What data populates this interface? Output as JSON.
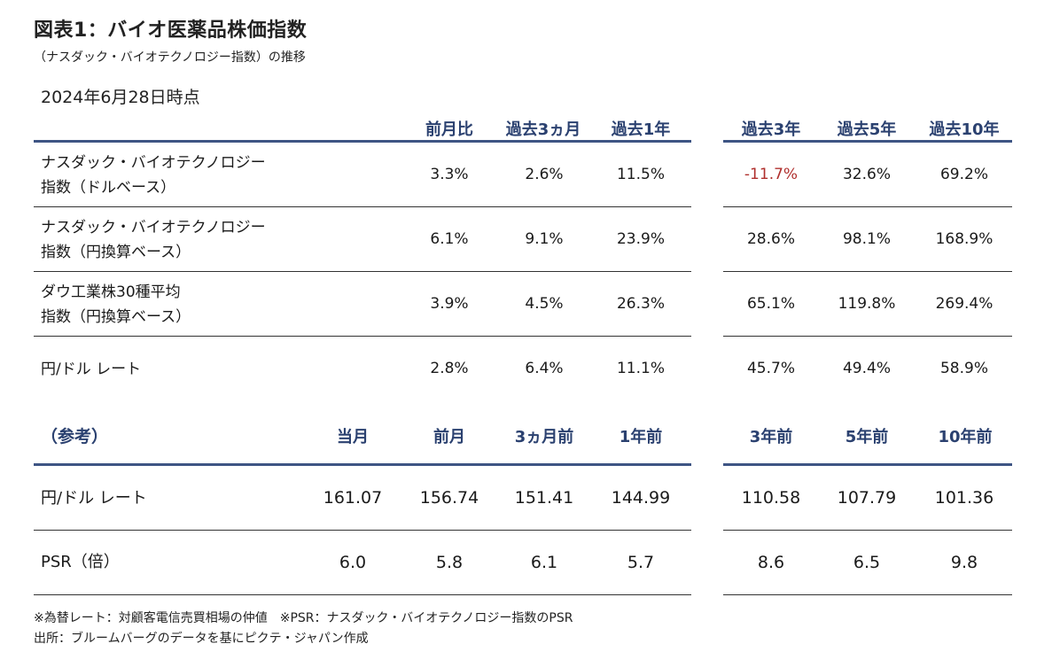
{
  "title": "図表1：バイオ医薬品株価指数",
  "subtitle": "（ナスダック・バイオテクノロジー指数）の推移",
  "as_of": "2024年6月28日時点",
  "performance": {
    "headers": [
      "前月比",
      "過去3ヵ月",
      "過去1年",
      "過去3年",
      "過去5年",
      "過去10年"
    ],
    "rows": [
      {
        "label_line1": "ナスダック・バイオテクノロジー",
        "label_line2": "指数（ドルベース）",
        "values": [
          "3.3%",
          "2.6%",
          "11.5%",
          "-11.7%",
          "32.6%",
          "69.2%"
        ]
      },
      {
        "label_line1": "ナスダック・バイオテクノロジー",
        "label_line2": "指数（円換算ベース）",
        "values": [
          "6.1%",
          "9.1%",
          "23.9%",
          "28.6%",
          "98.1%",
          "168.9%"
        ]
      },
      {
        "label_line1": "ダウ工業株30種平均",
        "label_line2": "指数（円換算ベース）",
        "values": [
          "3.9%",
          "4.5%",
          "26.3%",
          "65.1%",
          "119.8%",
          "269.4%"
        ]
      },
      {
        "label_line1": "円/ドル レート",
        "label_line2": "",
        "values": [
          "2.8%",
          "6.4%",
          "11.1%",
          "45.7%",
          "49.4%",
          "58.9%"
        ]
      }
    ],
    "negative_color": "#b0302e"
  },
  "reference": {
    "label": "（参考）",
    "headers": [
      "当月",
      "前月",
      "3ヵ月前",
      "1年前",
      "3年前",
      "5年前",
      "10年前"
    ],
    "rows": [
      {
        "label": "円/ドル レート",
        "values": [
          "161.07",
          "156.74",
          "151.41",
          "144.99",
          "110.58",
          "107.79",
          "101.36"
        ]
      },
      {
        "label": "PSR（倍）",
        "values": [
          "6.0",
          "5.8",
          "6.1",
          "5.7",
          "8.6",
          "6.5",
          "9.8"
        ]
      }
    ]
  },
  "footnotes": [
    "※為替レート：対顧客電信売買相場の仲値　※PSR：ナスダック・バイオテクノロジー指数のPSR",
    "出所：ブルームバーグのデータを基にピクテ・ジャパン作成"
  ],
  "accent_color": "#3e5584"
}
